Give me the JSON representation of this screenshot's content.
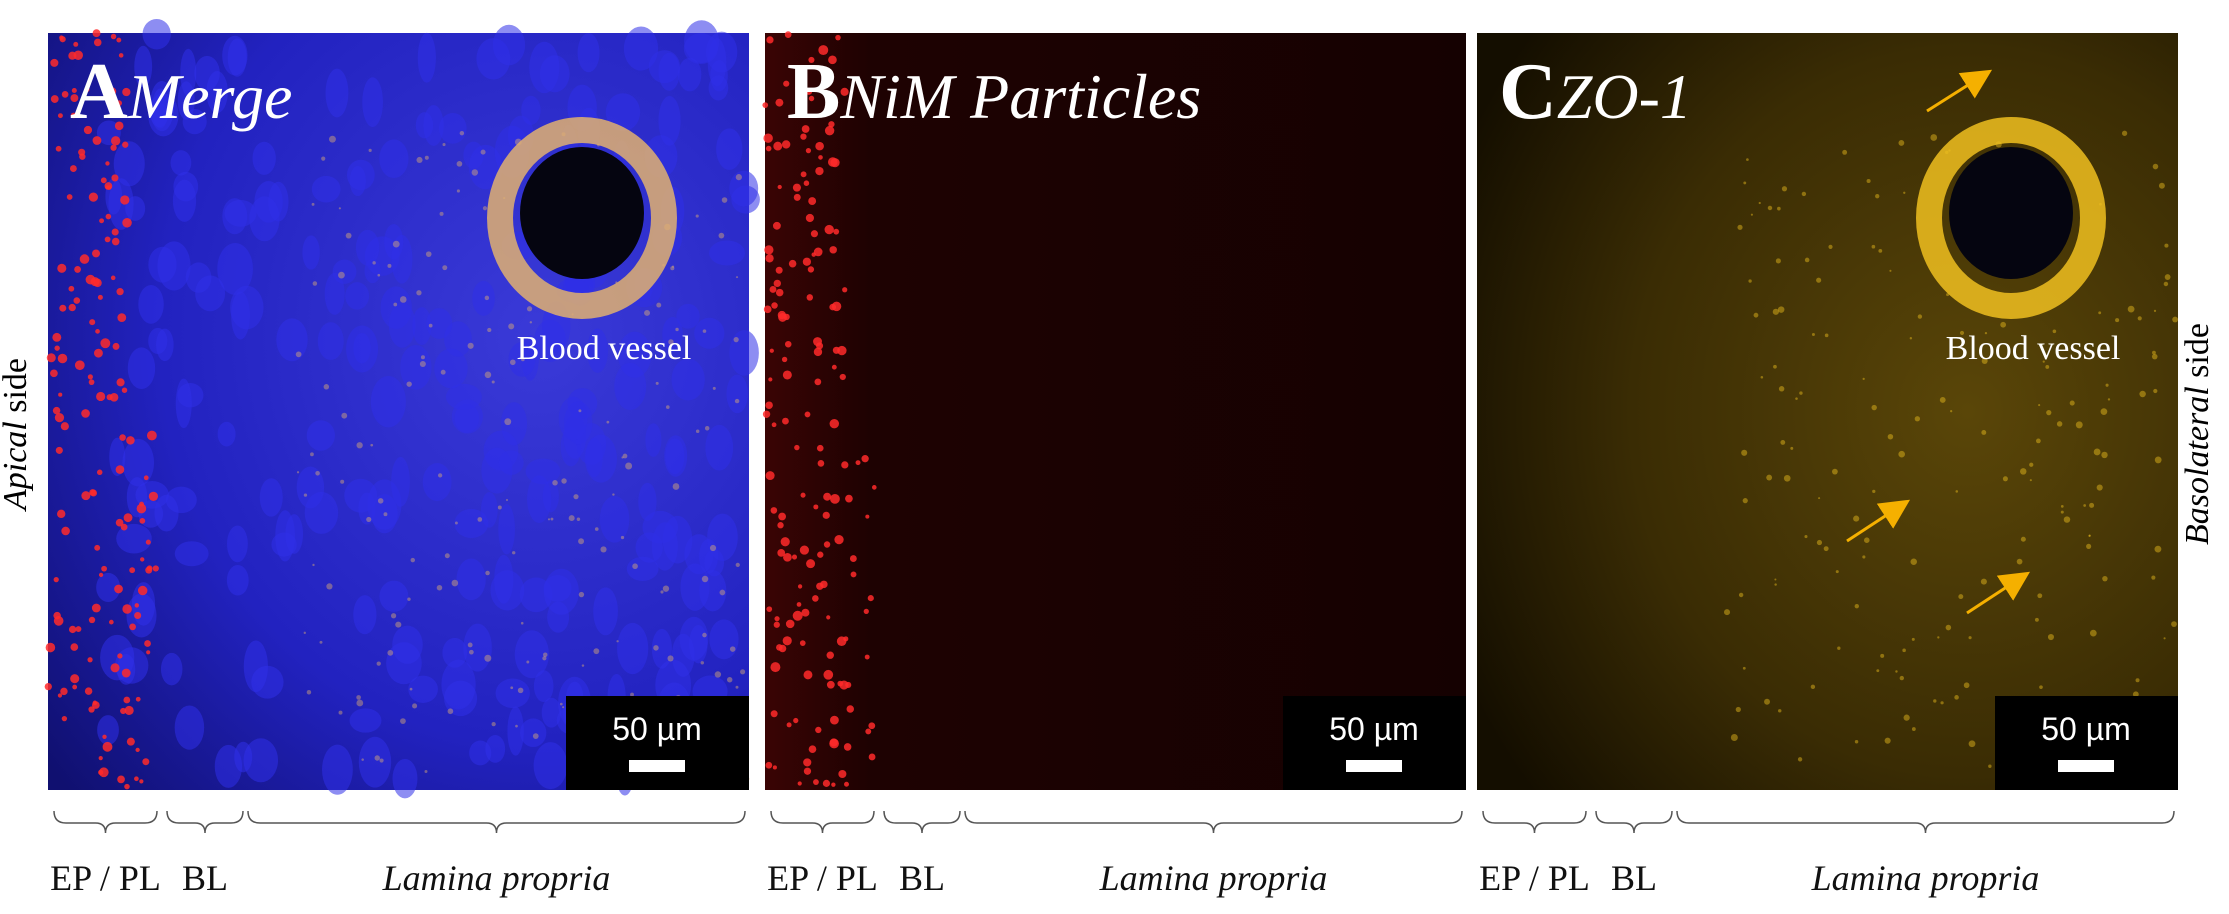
{
  "panels": [
    {
      "letter": "A",
      "title": "Merge",
      "annotation": "Blood vessel",
      "scale_bar": "50 µm",
      "regions": [
        "EP / PL",
        "BL",
        "Lamina propria"
      ]
    },
    {
      "letter": "B",
      "title": "NiM Particles",
      "scale_bar": "50 µm",
      "regions": [
        "EP / PL",
        "BL",
        "Lamina propria"
      ]
    },
    {
      "letter": "C",
      "title": "ZO-1",
      "annotation": "Blood vessel",
      "scale_bar": "50 µm",
      "regions": [
        "EP / PL",
        "BL",
        "Lamina propria"
      ]
    }
  ],
  "side_labels": {
    "left": [
      "Apical",
      "side"
    ],
    "right": [
      "Basolateral",
      "side"
    ]
  }
}
